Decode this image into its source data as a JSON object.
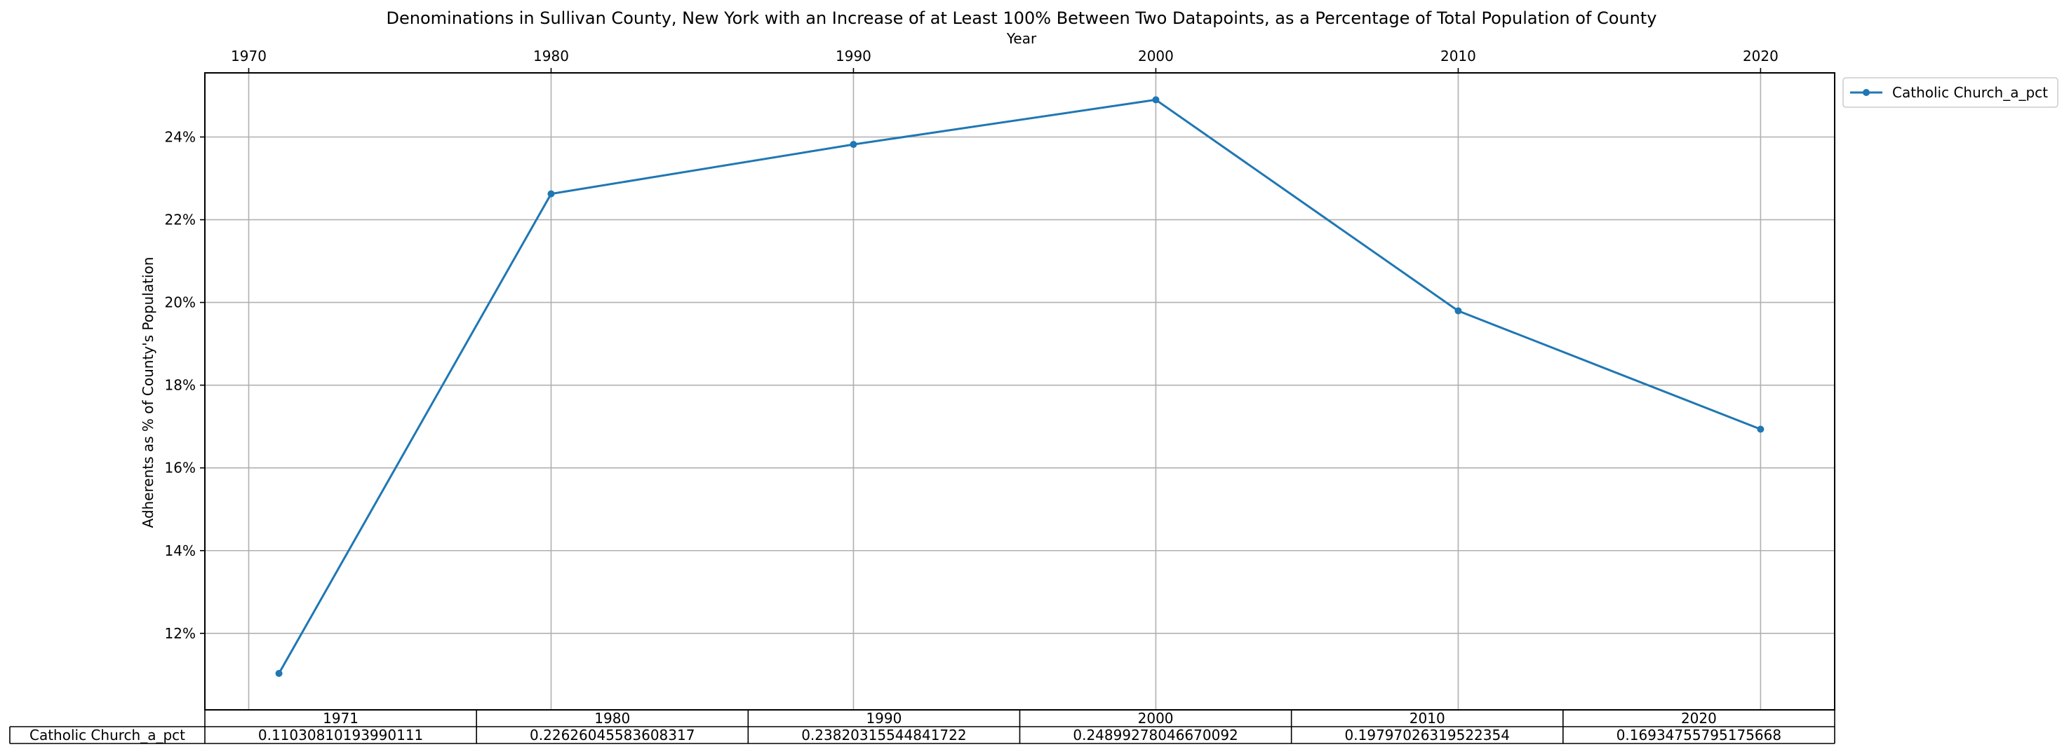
{
  "chart_data": {
    "type": "line",
    "title": "Denominations in Sullivan County, New York with an Increase of at Least 100% Between Two Datapoints, as a Percentage of Total Population of County",
    "xlabel": "Year",
    "ylabel": "Adherents as % of County's Population",
    "x": [
      1971,
      1980,
      1990,
      2000,
      2010,
      2020
    ],
    "xlim": [
      1968.55,
      2022.45
    ],
    "ylim": [
      0.1015,
      0.2555
    ],
    "x_ticks": [
      1970,
      1980,
      1990,
      2000,
      2010,
      2020
    ],
    "x_tick_labels": [
      "1970",
      "1980",
      "1990",
      "2000",
      "2010",
      "2020"
    ],
    "x_axis_position": "top",
    "y_ticks": [
      0.12,
      0.14,
      0.16,
      0.18,
      0.2,
      0.22,
      0.24
    ],
    "y_tick_labels": [
      "12%",
      "14%",
      "16%",
      "18%",
      "20%",
      "22%",
      "24%"
    ],
    "grid": true,
    "legend_position": "outside-top-right",
    "series": [
      {
        "name": "Catholic Church_a_pct",
        "color": "#1f77b4",
        "marker": "dot",
        "values": [
          0.11030810193990111,
          0.22626045583608317,
          0.23820315544841722,
          0.24899278046670092,
          0.19797026319522354,
          0.16934755795175668
        ]
      }
    ],
    "table": {
      "col_labels": [
        "1971",
        "1980",
        "1990",
        "2000",
        "2010",
        "2020"
      ],
      "rows": [
        {
          "label": "Catholic Church_a_pct",
          "cells": [
            "0.11030810193990111",
            "0.22626045583608317",
            "0.23820315544841722",
            "0.24899278046670092",
            "0.19797026319522354",
            "0.16934755795175668"
          ]
        }
      ]
    }
  }
}
